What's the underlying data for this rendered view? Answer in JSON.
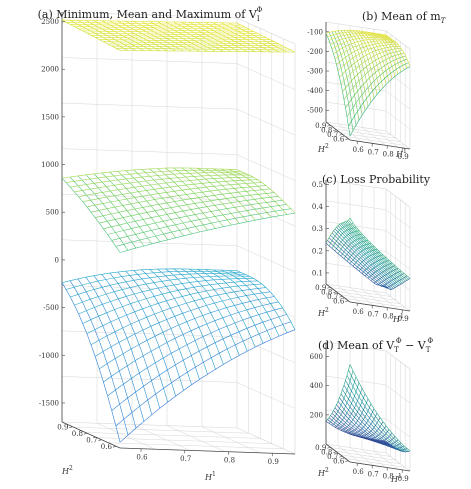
{
  "chart_data": [
    {
      "type": "surface",
      "panel": "(a)",
      "title": "(a) Minimum, Mean and Maximum of V",
      "title_sub": "I",
      "title_sup": "Φ",
      "xlabel": "H",
      "xlabel_sup": "1",
      "ylabel": "H",
      "ylabel_sup": "2",
      "z_ticks": [
        "2500",
        "2000",
        "1500",
        "1000",
        "500",
        "0",
        "-500",
        "-1000",
        "-1500"
      ],
      "x_ticks": [
        "0.6",
        "0.7",
        "0.8",
        "0.9"
      ],
      "y_ticks": [
        "0.9",
        "0.8",
        "0.7",
        "0.6"
      ],
      "zlim": [
        -1700,
        2600
      ],
      "series": [
        {
          "name": "Maximum",
          "z_min": 2470,
          "z_max": 2560,
          "colormap": "yellow"
        },
        {
          "name": "Mean",
          "z_min": 350,
          "z_max": 1010,
          "colormap": "green"
        },
        {
          "name": "Minimum",
          "z_min": -1640,
          "z_max": -50,
          "colormap": "blue"
        }
      ],
      "grid": true
    },
    {
      "type": "surface",
      "panel": "(b)",
      "title": "(b) Mean of m",
      "title_sub": "T",
      "z_ticks": [
        "-100",
        "-200",
        "-300",
        "-400",
        "-500"
      ],
      "x_ticks": [
        "0.6",
        "0.7",
        "0.8",
        "0.9"
      ],
      "y_ticks": [
        "0.9",
        "0.8",
        "0.7",
        "0.6"
      ],
      "xlabel": "H",
      "xlabel_sup": "1",
      "ylabel": "H",
      "ylabel_sup": "2",
      "zlim": [
        -560,
        -50
      ],
      "grid": true
    },
    {
      "type": "surface",
      "panel": "(c)",
      "title": "(c) Loss Probability",
      "z_ticks": [
        "0.5",
        "0.4",
        "0.3",
        "0.2",
        "0.1"
      ],
      "x_ticks": [
        "0.6",
        "0.7",
        "0.8",
        "0.9"
      ],
      "y_ticks": [
        "0.9",
        "0.8",
        "0.7",
        "0.6"
      ],
      "xlabel": "H",
      "xlabel_sup": "1",
      "ylabel": "H",
      "ylabel_sup": "2",
      "zlim": [
        0.05,
        0.52
      ],
      "grid": true
    },
    {
      "type": "surface",
      "panel": "(d)",
      "title": "(d) Mean of V",
      "title_sub": "T",
      "title_sup": "Φ",
      "title_mid": " − V",
      "title_sub2": "T",
      "title_sup2": "Φ",
      "z_ticks": [
        "600",
        "400",
        "200"
      ],
      "x_ticks": [
        "0.6",
        "0.7",
        "0.8",
        "0.9"
      ],
      "y_ticks": [
        "0.9",
        "0.8",
        "0.7",
        "0.6"
      ],
      "xlabel": "H",
      "xlabel_sup": "1",
      "ylabel": "H",
      "ylabel_sup": "2",
      "zlim": [
        0,
        700
      ],
      "grid": true
    }
  ]
}
